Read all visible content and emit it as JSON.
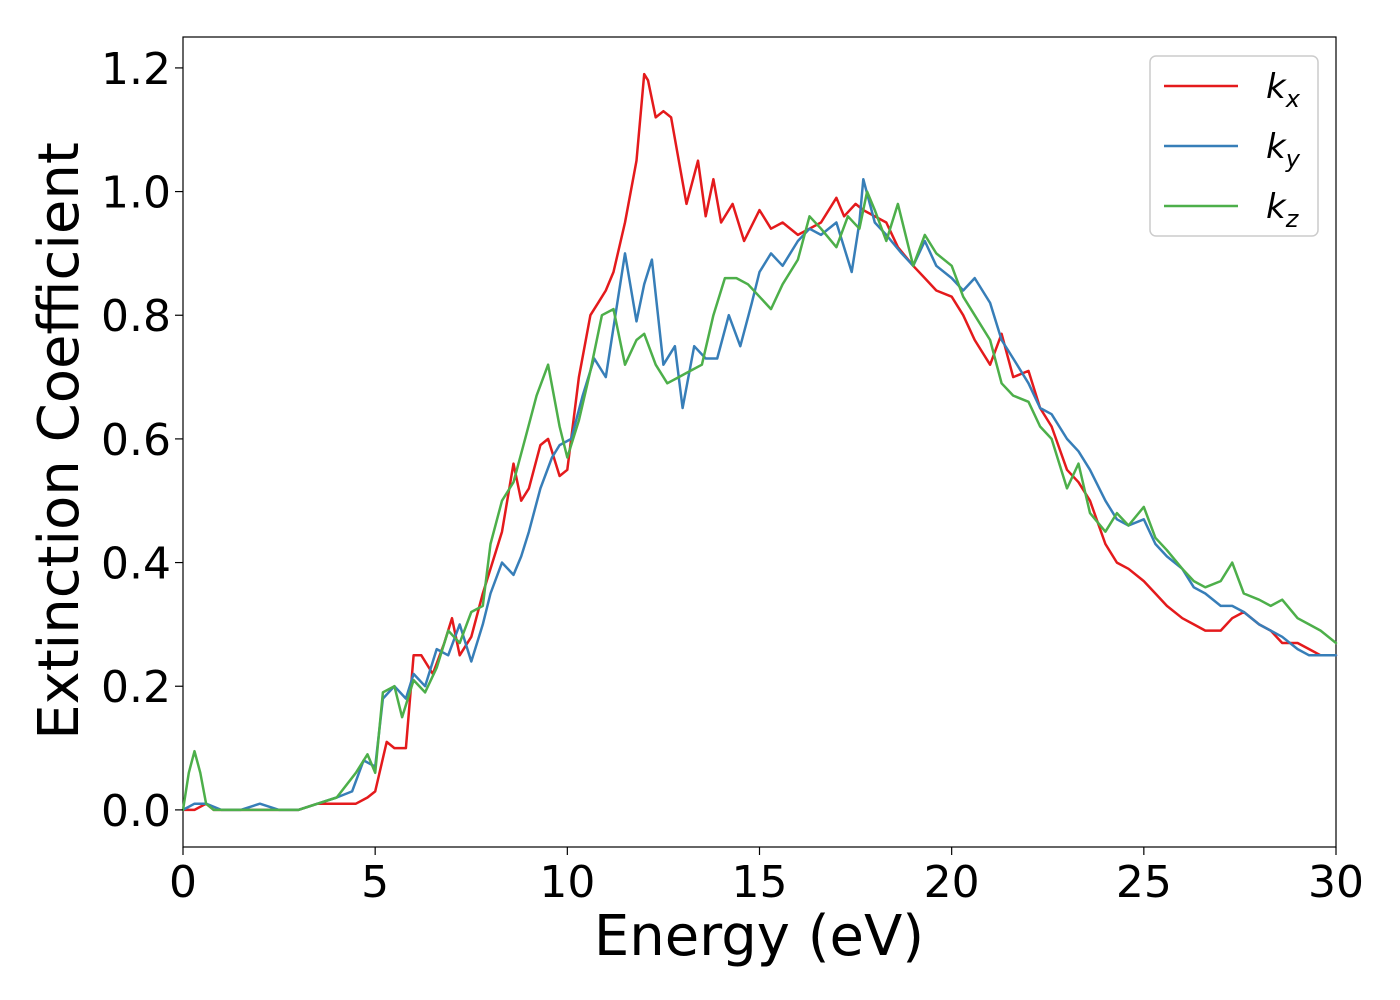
{
  "chart_data": {
    "type": "line",
    "xlabel": "Energy (eV)",
    "ylabel": "Extinction Coefficient",
    "xlim": [
      0,
      30
    ],
    "ylim": [
      -0.06,
      1.25
    ],
    "xticks": [
      0,
      5,
      10,
      15,
      20,
      25,
      30
    ],
    "xtick_labels": [
      "0",
      "5",
      "10",
      "15",
      "20",
      "25",
      "30"
    ],
    "yticks": [
      0.0,
      0.2,
      0.4,
      0.6,
      0.8,
      1.0,
      1.2
    ],
    "ytick_labels": [
      "0.0",
      "0.2",
      "0.4",
      "0.6",
      "0.8",
      "1.0",
      "1.2"
    ],
    "grid": false,
    "legend_position": "top-right",
    "legend": [
      {
        "base": "k",
        "sub": "x",
        "color": "#e41a1c"
      },
      {
        "base": "k",
        "sub": "y",
        "color": "#377eb8"
      },
      {
        "base": "k",
        "sub": "z",
        "color": "#4daf4a"
      }
    ],
    "series": [
      {
        "name": "k_x",
        "color": "#e41a1c",
        "x": [
          0,
          0.3,
          0.6,
          0.8,
          1.0,
          1.5,
          2.0,
          2.5,
          3.0,
          3.5,
          4.0,
          4.5,
          4.8,
          5.0,
          5.3,
          5.5,
          5.8,
          6.0,
          6.2,
          6.5,
          6.8,
          7.0,
          7.2,
          7.5,
          7.8,
          8.0,
          8.3,
          8.6,
          8.8,
          9.0,
          9.3,
          9.5,
          9.8,
          10.0,
          10.3,
          10.6,
          10.8,
          11.0,
          11.2,
          11.5,
          11.8,
          12.0,
          12.1,
          12.3,
          12.5,
          12.7,
          12.9,
          13.1,
          13.4,
          13.6,
          13.8,
          14.0,
          14.3,
          14.6,
          15.0,
          15.3,
          15.6,
          16.0,
          16.3,
          16.6,
          17.0,
          17.2,
          17.5,
          17.7,
          18.0,
          18.3,
          18.6,
          19.0,
          19.3,
          19.6,
          20.0,
          20.3,
          20.6,
          21.0,
          21.3,
          21.6,
          22.0,
          22.3,
          22.6,
          23.0,
          23.3,
          23.6,
          24.0,
          24.3,
          24.6,
          25.0,
          25.3,
          25.6,
          26.0,
          26.3,
          26.6,
          27.0,
          27.3,
          27.6,
          28.0,
          28.3,
          28.6,
          29.0,
          29.3,
          29.6,
          30.0
        ],
        "y": [
          0.0,
          0.0,
          0.01,
          0.0,
          0.0,
          0.0,
          0.0,
          0.0,
          0.0,
          0.01,
          0.01,
          0.01,
          0.02,
          0.03,
          0.11,
          0.1,
          0.1,
          0.25,
          0.25,
          0.22,
          0.27,
          0.31,
          0.25,
          0.28,
          0.35,
          0.39,
          0.45,
          0.56,
          0.5,
          0.52,
          0.59,
          0.6,
          0.54,
          0.55,
          0.7,
          0.8,
          0.82,
          0.84,
          0.87,
          0.95,
          1.05,
          1.19,
          1.18,
          1.12,
          1.13,
          1.12,
          1.05,
          0.98,
          1.05,
          0.96,
          1.02,
          0.95,
          0.98,
          0.92,
          0.97,
          0.94,
          0.95,
          0.93,
          0.94,
          0.95,
          0.99,
          0.96,
          0.98,
          0.97,
          0.96,
          0.95,
          0.91,
          0.88,
          0.86,
          0.84,
          0.83,
          0.8,
          0.76,
          0.72,
          0.77,
          0.7,
          0.71,
          0.65,
          0.62,
          0.55,
          0.53,
          0.5,
          0.43,
          0.4,
          0.39,
          0.37,
          0.35,
          0.33,
          0.31,
          0.3,
          0.29,
          0.29,
          0.31,
          0.32,
          0.3,
          0.29,
          0.27,
          0.27,
          0.26,
          0.25,
          0.25
        ]
      },
      {
        "name": "k_y",
        "color": "#377eb8",
        "x": [
          0,
          0.3,
          0.6,
          1.0,
          1.5,
          2.0,
          2.5,
          3.0,
          3.5,
          4.0,
          4.4,
          4.7,
          5.0,
          5.2,
          5.5,
          5.8,
          6.0,
          6.3,
          6.6,
          6.9,
          7.2,
          7.5,
          7.8,
          8.0,
          8.3,
          8.6,
          8.8,
          9.0,
          9.3,
          9.6,
          9.8,
          10.1,
          10.4,
          10.7,
          11.0,
          11.3,
          11.5,
          11.8,
          12.0,
          12.2,
          12.5,
          12.8,
          13.0,
          13.3,
          13.6,
          13.9,
          14.2,
          14.5,
          14.8,
          15.0,
          15.3,
          15.6,
          16.0,
          16.3,
          16.6,
          17.0,
          17.4,
          17.6,
          17.7,
          18.0,
          18.3,
          18.7,
          19.0,
          19.3,
          19.6,
          20.0,
          20.3,
          20.6,
          21.0,
          21.3,
          21.6,
          22.0,
          22.3,
          22.6,
          23.0,
          23.3,
          23.6,
          24.0,
          24.3,
          24.6,
          25.0,
          25.3,
          25.6,
          26.0,
          26.3,
          26.6,
          27.0,
          27.3,
          27.6,
          28.0,
          28.3,
          28.6,
          29.0,
          29.3,
          29.6,
          30.0
        ],
        "y": [
          0.0,
          0.01,
          0.01,
          0.0,
          0.0,
          0.01,
          0.0,
          0.0,
          0.01,
          0.02,
          0.03,
          0.08,
          0.07,
          0.18,
          0.2,
          0.18,
          0.22,
          0.2,
          0.26,
          0.25,
          0.3,
          0.24,
          0.3,
          0.35,
          0.4,
          0.38,
          0.41,
          0.45,
          0.52,
          0.57,
          0.59,
          0.6,
          0.67,
          0.73,
          0.7,
          0.82,
          0.9,
          0.79,
          0.85,
          0.89,
          0.72,
          0.75,
          0.65,
          0.75,
          0.73,
          0.73,
          0.8,
          0.75,
          0.82,
          0.87,
          0.9,
          0.88,
          0.92,
          0.94,
          0.93,
          0.95,
          0.87,
          0.95,
          1.02,
          0.95,
          0.93,
          0.9,
          0.88,
          0.92,
          0.88,
          0.86,
          0.84,
          0.86,
          0.82,
          0.76,
          0.73,
          0.69,
          0.65,
          0.64,
          0.6,
          0.58,
          0.55,
          0.5,
          0.47,
          0.46,
          0.47,
          0.43,
          0.41,
          0.39,
          0.36,
          0.35,
          0.33,
          0.33,
          0.32,
          0.3,
          0.29,
          0.28,
          0.26,
          0.25,
          0.25,
          0.25
        ]
      },
      {
        "name": "k_z",
        "color": "#4daf4a",
        "x": [
          0,
          0.15,
          0.3,
          0.45,
          0.6,
          0.8,
          1.0,
          1.5,
          2.0,
          2.5,
          3.0,
          3.5,
          4.0,
          4.5,
          4.8,
          5.0,
          5.2,
          5.5,
          5.7,
          6.0,
          6.3,
          6.6,
          6.9,
          7.2,
          7.5,
          7.8,
          8.0,
          8.3,
          8.6,
          8.9,
          9.2,
          9.5,
          9.8,
          10.0,
          10.3,
          10.6,
          10.9,
          11.2,
          11.5,
          11.8,
          12.0,
          12.3,
          12.6,
          12.9,
          13.2,
          13.5,
          13.8,
          14.1,
          14.4,
          14.7,
          15.0,
          15.3,
          15.6,
          16.0,
          16.3,
          16.6,
          17.0,
          17.3,
          17.6,
          17.8,
          18.0,
          18.3,
          18.6,
          19.0,
          19.3,
          19.6,
          20.0,
          20.3,
          20.6,
          21.0,
          21.3,
          21.6,
          22.0,
          22.3,
          22.6,
          23.0,
          23.3,
          23.6,
          24.0,
          24.3,
          24.6,
          25.0,
          25.3,
          25.6,
          26.0,
          26.3,
          26.6,
          27.0,
          27.3,
          27.6,
          28.0,
          28.3,
          28.6,
          29.0,
          29.3,
          29.6,
          30.0
        ],
        "y": [
          0.0,
          0.06,
          0.095,
          0.06,
          0.01,
          0.0,
          0.0,
          0.0,
          0.0,
          0.0,
          0.0,
          0.01,
          0.02,
          0.06,
          0.09,
          0.06,
          0.19,
          0.2,
          0.15,
          0.21,
          0.19,
          0.23,
          0.29,
          0.27,
          0.32,
          0.33,
          0.43,
          0.5,
          0.53,
          0.6,
          0.67,
          0.72,
          0.62,
          0.57,
          0.63,
          0.71,
          0.8,
          0.81,
          0.72,
          0.76,
          0.77,
          0.72,
          0.69,
          0.7,
          0.71,
          0.72,
          0.8,
          0.86,
          0.86,
          0.85,
          0.83,
          0.81,
          0.85,
          0.89,
          0.96,
          0.94,
          0.91,
          0.96,
          0.94,
          1.0,
          0.97,
          0.92,
          0.98,
          0.88,
          0.93,
          0.9,
          0.88,
          0.83,
          0.8,
          0.76,
          0.69,
          0.67,
          0.66,
          0.62,
          0.6,
          0.52,
          0.56,
          0.48,
          0.45,
          0.48,
          0.46,
          0.49,
          0.44,
          0.42,
          0.39,
          0.37,
          0.36,
          0.37,
          0.4,
          0.35,
          0.34,
          0.33,
          0.34,
          0.31,
          0.3,
          0.29,
          0.27
        ]
      }
    ]
  }
}
